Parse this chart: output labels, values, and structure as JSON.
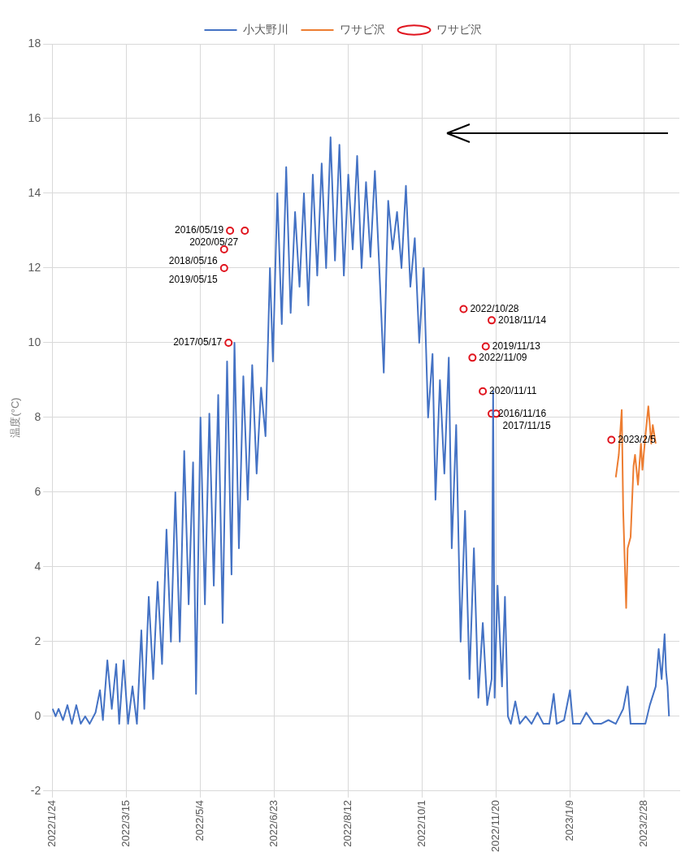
{
  "chart_data": {
    "type": "line",
    "ylabel": "温度(°C)",
    "xlim": [
      "2022-01-22",
      "2023-03-24"
    ],
    "ylim": [
      -2,
      18
    ],
    "yticks": [
      -2,
      0,
      2,
      4,
      6,
      8,
      10,
      12,
      14,
      16,
      18
    ],
    "xticks": [
      {
        "value": "2022-01-24",
        "label": "2022/1/24"
      },
      {
        "value": "2022-03-15",
        "label": "2022/3/15"
      },
      {
        "value": "2022-05-04",
        "label": "2022/5/4"
      },
      {
        "value": "2022-06-23",
        "label": "2022/6/23"
      },
      {
        "value": "2022-08-12",
        "label": "2022/8/12"
      },
      {
        "value": "2022-10-01",
        "label": "2022/10/1"
      },
      {
        "value": "2022-11-20",
        "label": "2022/11/20"
      },
      {
        "value": "2023-01-09",
        "label": "2023/1/9"
      },
      {
        "value": "2023-02-28",
        "label": "2023/2/28"
      }
    ],
    "grid": true,
    "legend": "top",
    "series": [
      {
        "name": "小大野川",
        "color": "#4472c4",
        "x": [
          "2022-01-24",
          "2022-01-26",
          "2022-01-28",
          "2022-01-31",
          "2022-02-03",
          "2022-02-06",
          "2022-02-09",
          "2022-02-12",
          "2022-02-15",
          "2022-02-18",
          "2022-02-22",
          "2022-02-25",
          "2022-02-27",
          "2022-03-02",
          "2022-03-05",
          "2022-03-08",
          "2022-03-10",
          "2022-03-13",
          "2022-03-16",
          "2022-03-19",
          "2022-03-22",
          "2022-03-25",
          "2022-03-27",
          "2022-03-30",
          "2022-04-02",
          "2022-04-05",
          "2022-04-08",
          "2022-04-11",
          "2022-04-14",
          "2022-04-17",
          "2022-04-20",
          "2022-04-23",
          "2022-04-26",
          "2022-04-29",
          "2022-05-01",
          "2022-05-04",
          "2022-05-07",
          "2022-05-10",
          "2022-05-13",
          "2022-05-16",
          "2022-05-19",
          "2022-05-22",
          "2022-05-25",
          "2022-05-27",
          "2022-05-30",
          "2022-06-02",
          "2022-06-05",
          "2022-06-08",
          "2022-06-11",
          "2022-06-14",
          "2022-06-17",
          "2022-06-20",
          "2022-06-22",
          "2022-06-25",
          "2022-06-28",
          "2022-07-01",
          "2022-07-04",
          "2022-07-07",
          "2022-07-10",
          "2022-07-13",
          "2022-07-16",
          "2022-07-19",
          "2022-07-22",
          "2022-07-25",
          "2022-07-28",
          "2022-07-31",
          "2022-08-03",
          "2022-08-06",
          "2022-08-09",
          "2022-08-12",
          "2022-08-15",
          "2022-08-18",
          "2022-08-21",
          "2022-08-24",
          "2022-08-27",
          "2022-08-30",
          "2022-09-02",
          "2022-09-05",
          "2022-09-08",
          "2022-09-11",
          "2022-09-14",
          "2022-09-17",
          "2022-09-20",
          "2022-09-23",
          "2022-09-26",
          "2022-09-29",
          "2022-10-02",
          "2022-10-05",
          "2022-10-08",
          "2022-10-10",
          "2022-10-13",
          "2022-10-16",
          "2022-10-19",
          "2022-10-21",
          "2022-10-24",
          "2022-10-27",
          "2022-10-30",
          "2022-11-02",
          "2022-11-05",
          "2022-11-08",
          "2022-11-11",
          "2022-11-14",
          "2022-11-17",
          "2022-11-18",
          "2022-11-19",
          "2022-11-21",
          "2022-11-24",
          "2022-11-26",
          "2022-11-28",
          "2022-11-30",
          "2022-12-03",
          "2022-12-06",
          "2022-12-10",
          "2022-12-14",
          "2022-12-18",
          "2022-12-22",
          "2022-12-26",
          "2022-12-29",
          "2022-12-31",
          "2023-01-05",
          "2023-01-09",
          "2023-01-11",
          "2023-01-16",
          "2023-01-20",
          "2023-01-25",
          "2023-01-30",
          "2023-02-04",
          "2023-02-09",
          "2023-02-14",
          "2023-02-17",
          "2023-02-19",
          "2023-02-24",
          "2023-03-01",
          "2023-03-04",
          "2023-03-08",
          "2023-03-10",
          "2023-03-12",
          "2023-03-14",
          "2023-03-15",
          "2023-03-16",
          "2023-03-17"
        ],
        "values": [
          0.2,
          0,
          0.2,
          -0.1,
          0.3,
          -0.2,
          0.3,
          -0.2,
          0,
          -0.2,
          0.1,
          0.7,
          -0.1,
          1.5,
          0.2,
          1.4,
          -0.2,
          1.5,
          -0.2,
          0.8,
          -0.2,
          2.3,
          0.2,
          3.2,
          1.0,
          3.6,
          1.4,
          5.0,
          2.0,
          6.0,
          2.0,
          7.1,
          3.0,
          6.8,
          0.6,
          8.0,
          3.0,
          8.1,
          3.5,
          8.6,
          2.5,
          9.5,
          3.8,
          10.0,
          4.5,
          9.1,
          5.8,
          9.4,
          6.5,
          8.8,
          7.5,
          12.0,
          9.5,
          14.0,
          10.5,
          14.7,
          10.8,
          13.5,
          11.5,
          14.0,
          11.0,
          14.5,
          11.8,
          14.8,
          12.0,
          15.5,
          12.2,
          15.3,
          11.8,
          14.5,
          12.5,
          15.0,
          12.0,
          14.3,
          12.3,
          14.6,
          12.0,
          9.2,
          13.8,
          12.5,
          13.5,
          12.0,
          14.2,
          11.5,
          12.8,
          10.0,
          12.0,
          8.0,
          9.7,
          5.8,
          9.0,
          6.5,
          9.6,
          4.5,
          7.8,
          2.0,
          5.5,
          1.0,
          4.5,
          0.5,
          2.5,
          0.3,
          1.0,
          8.7,
          0.5,
          3.5,
          0.8,
          3.2,
          0.0,
          -0.2,
          0.4,
          -0.2,
          0,
          -0.2,
          0.1,
          -0.2,
          -0.2,
          0.6,
          -0.2,
          -0.1,
          0.7,
          -0.2,
          -0.2,
          0.1,
          -0.2,
          -0.2,
          -0.1,
          -0.2,
          0.2,
          0.8,
          -0.2,
          -0.2,
          -0.2,
          0.3,
          0.8,
          1.8,
          1.0,
          2.2,
          1.2,
          0.8,
          0
        ]
      },
      {
        "name": "ワサビ沢",
        "color": "#ed7d31",
        "x": [
          "2023-02-09",
          "2023-02-11",
          "2023-02-13",
          "2023-02-14",
          "2023-02-16",
          "2023-02-17",
          "2023-02-19",
          "2023-02-21",
          "2023-02-22",
          "2023-02-24",
          "2023-02-26",
          "2023-02-27",
          "2023-03-01",
          "2023-03-03",
          "2023-03-05",
          "2023-03-06",
          "2023-03-08"
        ],
        "values": [
          6.4,
          7.0,
          8.2,
          5.5,
          2.9,
          4.5,
          4.8,
          6.7,
          7.0,
          6.2,
          7.3,
          6.6,
          7.5,
          8.3,
          7.3,
          7.8,
          7.3
        ]
      },
      {
        "name": "ワサビ沢",
        "type": "scatter",
        "marker": "circle",
        "color": "#e0141e",
        "x": [
          "2022-05-24",
          "2022-06-03",
          "2022-05-20",
          "2022-05-20",
          "2022-05-23",
          "2022-10-29",
          "2022-11-17",
          "2022-11-13",
          "2022-11-04",
          "2022-11-11",
          "2022-11-17",
          "2022-11-20",
          "2023-02-06"
        ],
        "values": [
          13.0,
          13.0,
          12.5,
          12.0,
          10.0,
          10.9,
          10.6,
          9.9,
          9.6,
          8.7,
          8.1,
          8.1,
          7.4
        ]
      }
    ],
    "annotations": [
      {
        "text": "2016/05/19",
        "x": "2022-05-24",
        "y": 13.0
      },
      {
        "text": "2020/05/27",
        "x": "2022-06-03",
        "y": 13.0
      },
      {
        "text": "2018/05/16",
        "x": "2022-05-20",
        "y": 12.5
      },
      {
        "text": "2019/05/15",
        "x": "2022-05-20",
        "y": 12.0
      },
      {
        "text": "2017/05/17",
        "x": "2022-05-23",
        "y": 10.0
      },
      {
        "text": "2022/10/28",
        "x": "2022-10-29",
        "y": 10.9
      },
      {
        "text": "2018/11/14",
        "x": "2022-11-17",
        "y": 10.6
      },
      {
        "text": "2019/11/13",
        "x": "2022-11-13",
        "y": 9.9
      },
      {
        "text": "2022/11/09",
        "x": "2022-11-04",
        "y": 9.6
      },
      {
        "text": "2020/11/11",
        "x": "2022-11-11",
        "y": 8.7
      },
      {
        "text": "2016/11/16",
        "x": "2022-11-17",
        "y": 8.1
      },
      {
        "text": "2017/11/15",
        "x": "2022-11-20",
        "y": 8.1
      },
      {
        "text": "2023/2/5",
        "x": "2023-02-06",
        "y": 7.4
      }
    ]
  }
}
